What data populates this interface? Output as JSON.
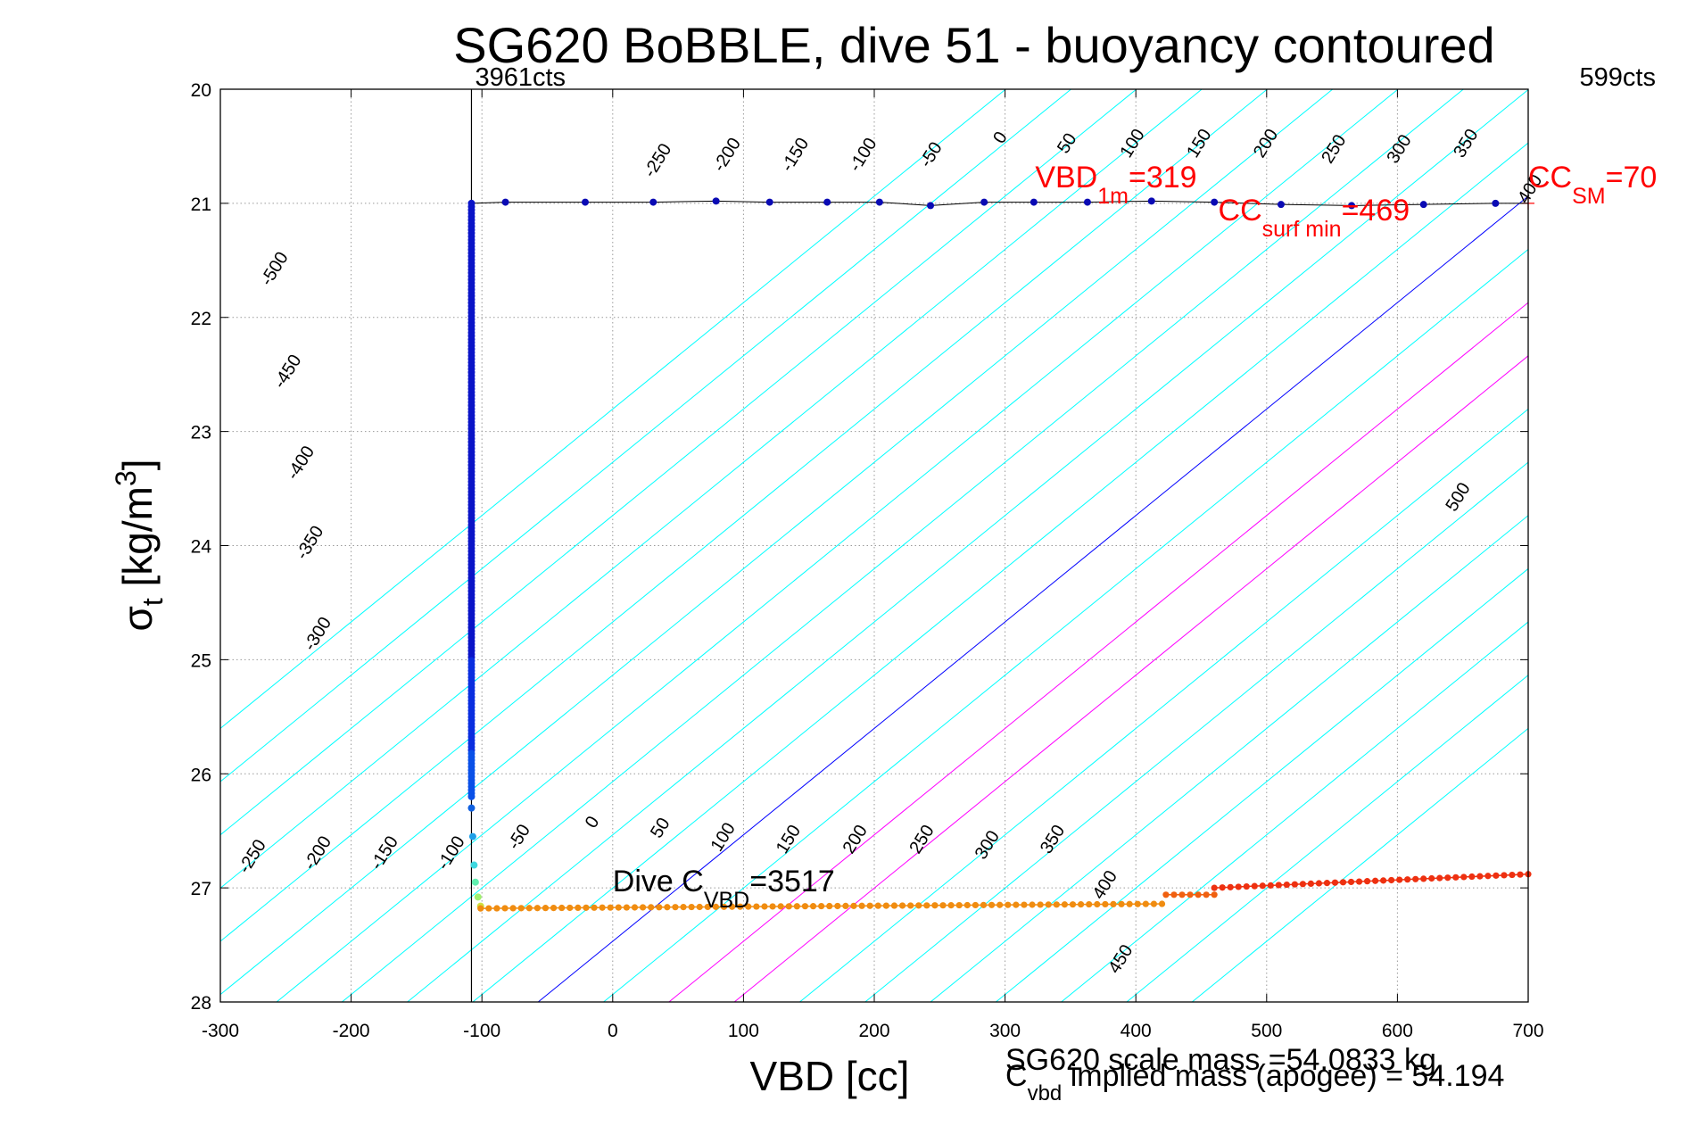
{
  "chart_data": {
    "type": "scatter",
    "title": "SG620 BoBBLE, dive 51 - buoyancy contoured",
    "xlabel": "VBD [cc]",
    "ylabel": {
      "main": "σ",
      "sub": "t",
      "units_pre": " [kg/m",
      "units_sup": "3",
      "units_post": "]"
    },
    "xlim": [
      -300,
      700
    ],
    "ylim": [
      28,
      20
    ],
    "y_reversed": true,
    "x_ticks": [
      -300,
      -200,
      -100,
      0,
      100,
      200,
      300,
      400,
      500,
      600,
      700
    ],
    "y_ticks": [
      20,
      21,
      22,
      23,
      24,
      25,
      26,
      27,
      28
    ],
    "grid": true,
    "contour_slope": 0.00933,
    "contour_lines": [
      {
        "val": -500,
        "color": "#00ffff"
      },
      {
        "val": -450,
        "color": "#00ffff"
      },
      {
        "val": -400,
        "color": "#00ffff"
      },
      {
        "val": -350,
        "color": "#00ffff"
      },
      {
        "val": -300,
        "color": "#00ffff"
      },
      {
        "val": -250,
        "color": "#00ffff"
      },
      {
        "val": -200,
        "color": "#00ffff"
      },
      {
        "val": -150,
        "color": "#00ffff"
      },
      {
        "val": -100,
        "color": "#00ffff"
      },
      {
        "val": -50,
        "color": "#00ffff"
      },
      {
        "val": 0,
        "color": "#0000ff"
      },
      {
        "val": 50,
        "color": "#00ffff"
      },
      {
        "val": 100,
        "color": "#ff00ff"
      },
      {
        "val": 150,
        "color": "#ff00ff"
      },
      {
        "val": 200,
        "color": "#00ffff"
      },
      {
        "val": 250,
        "color": "#00ffff"
      },
      {
        "val": 300,
        "color": "#00ffff"
      },
      {
        "val": 350,
        "color": "#00ffff"
      },
      {
        "val": 400,
        "color": "#00ffff"
      },
      {
        "val": 450,
        "color": "#00ffff"
      },
      {
        "val": 500,
        "color": "#00ffff"
      }
    ],
    "contour_labels_top": [
      {
        "text": "-500",
        "x": -255,
        "y": 21.6
      },
      {
        "text": "-450",
        "x": -245,
        "y": 22.5
      },
      {
        "text": "-400",
        "x": -235,
        "y": 23.3
      },
      {
        "text": "-350",
        "x": -228,
        "y": 24.0
      },
      {
        "text": "-300",
        "x": -222,
        "y": 24.8
      },
      {
        "text": "-250",
        "x": 38,
        "y": 20.65
      },
      {
        "text": "-200",
        "x": 91,
        "y": 20.6
      },
      {
        "text": "-150",
        "x": 143,
        "y": 20.6
      },
      {
        "text": "-100",
        "x": 195,
        "y": 20.6
      },
      {
        "text": "-50",
        "x": 247,
        "y": 20.6
      },
      {
        "text": "0",
        "x": 300,
        "y": 20.45
      },
      {
        "text": "50",
        "x": 351,
        "y": 20.5
      },
      {
        "text": "100",
        "x": 401,
        "y": 20.5
      },
      {
        "text": "150",
        "x": 452,
        "y": 20.5
      },
      {
        "text": "200",
        "x": 503,
        "y": 20.5
      },
      {
        "text": "250",
        "x": 555,
        "y": 20.55
      },
      {
        "text": "300",
        "x": 605,
        "y": 20.55
      },
      {
        "text": "350",
        "x": 656,
        "y": 20.5
      },
      {
        "text": "400",
        "x": 705,
        "y": 20.9
      },
      {
        "text": "500",
        "x": 650,
        "y": 23.6
      }
    ],
    "contour_labels_bottom": [
      {
        "text": "-250",
        "x": -272,
        "y": 26.75
      },
      {
        "text": "-200",
        "x": -222,
        "y": 26.72
      },
      {
        "text": "-150",
        "x": -171,
        "y": 26.72
      },
      {
        "text": "-100",
        "x": -120,
        "y": 26.72
      },
      {
        "text": "-50",
        "x": -68,
        "y": 26.58
      },
      {
        "text": "0",
        "x": -12,
        "y": 26.45
      },
      {
        "text": "50",
        "x": 40,
        "y": 26.5
      },
      {
        "text": "100",
        "x": 88,
        "y": 26.58
      },
      {
        "text": "150",
        "x": 138,
        "y": 26.6
      },
      {
        "text": "200",
        "x": 189,
        "y": 26.6
      },
      {
        "text": "250",
        "x": 240,
        "y": 26.6
      },
      {
        "text": "300",
        "x": 290,
        "y": 26.65
      },
      {
        "text": "350",
        "x": 340,
        "y": 26.6
      },
      {
        "text": "400",
        "x": 380,
        "y": 27.0
      },
      {
        "text": "450",
        "x": 392,
        "y": 27.65
      }
    ],
    "vertical_lines": [
      {
        "x": -108,
        "label": "3961cts"
      },
      {
        "x": 700,
        "label": "599cts"
      }
    ],
    "surface_series": {
      "name": "surface",
      "color": "#0a0ab4",
      "x": [
        -82,
        -21,
        31,
        79,
        120,
        164,
        204,
        243,
        284,
        322,
        363,
        412,
        460,
        511,
        565,
        620,
        675
      ],
      "y": [
        20.99,
        20.99,
        20.99,
        20.98,
        20.99,
        20.99,
        20.99,
        21.02,
        20.99,
        20.99,
        20.99,
        20.98,
        20.99,
        21.01,
        21.02,
        21.01,
        21.0
      ]
    },
    "descent_series": {
      "name": "descent",
      "x": -108,
      "y_start": 21.0,
      "y_end": 26.2,
      "n": 180,
      "tail_x": [
        -108,
        -107,
        -106,
        -105,
        -103,
        -101
      ],
      "tail_y": [
        26.3,
        26.55,
        26.8,
        26.95,
        27.08,
        27.16
      ],
      "tail_colors": [
        "#1060e0",
        "#20a0e8",
        "#40d8e0",
        "#60f0b0",
        "#a0f070",
        "#d0e040"
      ]
    },
    "bottom_series": {
      "name": "bottom",
      "segments": [
        {
          "x0": -101,
          "x1": 420,
          "y0": 27.18,
          "y1": 27.14,
          "n": 85,
          "color": "#f08c10"
        },
        {
          "x0": 423,
          "x1": 460,
          "y0": 27.06,
          "y1": 27.06,
          "n": 7,
          "color": "#f06010"
        },
        {
          "x0": 460,
          "x1": 700,
          "y0": 27.0,
          "y1": 26.88,
          "n": 40,
          "color": "#ee3010"
        }
      ]
    },
    "annotations": [
      {
        "color": "#ff0000",
        "x": 323,
        "y": 20.86,
        "parts": [
          {
            "t": "VBD",
            "s": 0
          },
          {
            "t": "1m",
            "s": 1
          },
          {
            "t": "=319",
            "s": 0
          }
        ]
      },
      {
        "color": "#ff0000",
        "x": 463,
        "y": 21.15,
        "parts": [
          {
            "t": "CC",
            "s": 0
          },
          {
            "t": "surf min",
            "s": 1
          },
          {
            "t": "=469",
            "s": 0
          }
        ]
      },
      {
        "color": "#ff0000",
        "x": 700,
        "y": 20.86,
        "parts": [
          {
            "t": "CC",
            "s": 0
          },
          {
            "t": "SM",
            "s": 1
          },
          {
            "t": "=70",
            "s": 0
          }
        ]
      },
      {
        "color": "#000000",
        "x": 0,
        "y": 27.03,
        "parts": [
          {
            "t": "Dive C",
            "s": 0
          },
          {
            "t": "VBD",
            "s": 1
          },
          {
            "t": "=3517",
            "s": 0
          }
        ]
      }
    ],
    "cc_sm_marker": {
      "x": 700,
      "y": 21.0,
      "color": "#ff0000"
    }
  },
  "footer": {
    "scale_mass": "SG620 scale mass =54.0833 kg",
    "implied_pre": "C",
    "implied_sub": "vbd",
    "implied_post": " implied mass (apogee) = 54.194"
  }
}
